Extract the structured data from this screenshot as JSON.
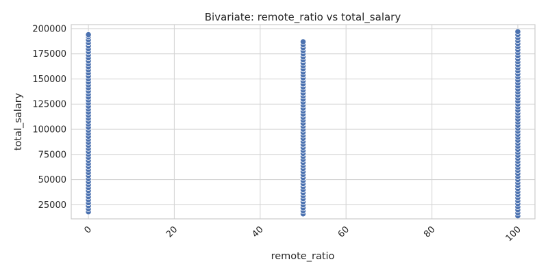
{
  "chart_data": {
    "type": "scatter",
    "title": "Bivariate: remote_ratio vs total_salary",
    "xlabel": "remote_ratio",
    "ylabel": "total_salary",
    "xlim": [
      -4,
      104
    ],
    "ylim": [
      11000,
      204000
    ],
    "x_ticks": [
      0,
      20,
      40,
      60,
      80,
      100
    ],
    "x_tick_labels": [
      "0",
      "20",
      "40",
      "60",
      "80",
      "100"
    ],
    "y_ticks": [
      25000,
      50000,
      75000,
      100000,
      125000,
      150000,
      175000,
      200000
    ],
    "y_tick_labels": [
      "25000",
      "50000",
      "75000",
      "100000",
      "125000",
      "150000",
      "175000",
      "200000"
    ],
    "x_tick_rotation_deg": 45,
    "grid": true,
    "marker_color": "#4c72b0",
    "series": [
      {
        "points": [
          [
            0,
            18000
          ],
          [
            0,
            21000
          ],
          [
            0,
            24000
          ],
          [
            0,
            27000
          ],
          [
            0,
            30000
          ],
          [
            0,
            33000
          ],
          [
            0,
            36000
          ],
          [
            0,
            39000
          ],
          [
            0,
            42000
          ],
          [
            0,
            45000
          ],
          [
            0,
            48000
          ],
          [
            0,
            51000
          ],
          [
            0,
            54000
          ],
          [
            0,
            57000
          ],
          [
            0,
            60000
          ],
          [
            0,
            63000
          ],
          [
            0,
            66000
          ],
          [
            0,
            69000
          ],
          [
            0,
            72000
          ],
          [
            0,
            75000
          ],
          [
            0,
            78000
          ],
          [
            0,
            81000
          ],
          [
            0,
            84000
          ],
          [
            0,
            87000
          ],
          [
            0,
            90000
          ],
          [
            0,
            93000
          ],
          [
            0,
            96000
          ],
          [
            0,
            99000
          ],
          [
            0,
            102000
          ],
          [
            0,
            105000
          ],
          [
            0,
            108000
          ],
          [
            0,
            111000
          ],
          [
            0,
            114000
          ],
          [
            0,
            117000
          ],
          [
            0,
            120000
          ],
          [
            0,
            123000
          ],
          [
            0,
            126000
          ],
          [
            0,
            129000
          ],
          [
            0,
            132000
          ],
          [
            0,
            135000
          ],
          [
            0,
            138000
          ],
          [
            0,
            141000
          ],
          [
            0,
            144000
          ],
          [
            0,
            147000
          ],
          [
            0,
            150000
          ],
          [
            0,
            153000
          ],
          [
            0,
            156000
          ],
          [
            0,
            159000
          ],
          [
            0,
            162000
          ],
          [
            0,
            165000
          ],
          [
            0,
            168000
          ],
          [
            0,
            171000
          ],
          [
            0,
            174000
          ],
          [
            0,
            177000
          ],
          [
            0,
            180000
          ],
          [
            0,
            183000
          ],
          [
            0,
            186000
          ],
          [
            0,
            189000
          ],
          [
            0,
            192000
          ],
          [
            0,
            194000
          ],
          [
            50,
            16000
          ],
          [
            50,
            19000
          ],
          [
            50,
            22000
          ],
          [
            50,
            25000
          ],
          [
            50,
            28000
          ],
          [
            50,
            31000
          ],
          [
            50,
            34000
          ],
          [
            50,
            37000
          ],
          [
            50,
            40000
          ],
          [
            50,
            43000
          ],
          [
            50,
            46000
          ],
          [
            50,
            49000
          ],
          [
            50,
            52000
          ],
          [
            50,
            55000
          ],
          [
            50,
            58000
          ],
          [
            50,
            61000
          ],
          [
            50,
            64000
          ],
          [
            50,
            67000
          ],
          [
            50,
            70000
          ],
          [
            50,
            73000
          ],
          [
            50,
            76000
          ],
          [
            50,
            79000
          ],
          [
            50,
            82000
          ],
          [
            50,
            85000
          ],
          [
            50,
            88000
          ],
          [
            50,
            91000
          ],
          [
            50,
            94000
          ],
          [
            50,
            97000
          ],
          [
            50,
            100000
          ],
          [
            50,
            103000
          ],
          [
            50,
            106000
          ],
          [
            50,
            109000
          ],
          [
            50,
            112000
          ],
          [
            50,
            115000
          ],
          [
            50,
            118000
          ],
          [
            50,
            121000
          ],
          [
            50,
            124000
          ],
          [
            50,
            127000
          ],
          [
            50,
            130000
          ],
          [
            50,
            133000
          ],
          [
            50,
            136000
          ],
          [
            50,
            139000
          ],
          [
            50,
            142000
          ],
          [
            50,
            145000
          ],
          [
            50,
            148000
          ],
          [
            50,
            151000
          ],
          [
            50,
            154000
          ],
          [
            50,
            157000
          ],
          [
            50,
            160000
          ],
          [
            50,
            163000
          ],
          [
            50,
            166000
          ],
          [
            50,
            169000
          ],
          [
            50,
            172000
          ],
          [
            50,
            175000
          ],
          [
            50,
            178000
          ],
          [
            50,
            181000
          ],
          [
            50,
            184000
          ],
          [
            50,
            187000
          ],
          [
            100,
            14000
          ],
          [
            100,
            17000
          ],
          [
            100,
            20000
          ],
          [
            100,
            23000
          ],
          [
            100,
            26000
          ],
          [
            100,
            29000
          ],
          [
            100,
            32000
          ],
          [
            100,
            35000
          ],
          [
            100,
            38000
          ],
          [
            100,
            41000
          ],
          [
            100,
            44000
          ],
          [
            100,
            47000
          ],
          [
            100,
            50000
          ],
          [
            100,
            53000
          ],
          [
            100,
            56000
          ],
          [
            100,
            59000
          ],
          [
            100,
            62000
          ],
          [
            100,
            65000
          ],
          [
            100,
            68000
          ],
          [
            100,
            71000
          ],
          [
            100,
            74000
          ],
          [
            100,
            77000
          ],
          [
            100,
            80000
          ],
          [
            100,
            83000
          ],
          [
            100,
            86000
          ],
          [
            100,
            89000
          ],
          [
            100,
            92000
          ],
          [
            100,
            95000
          ],
          [
            100,
            98000
          ],
          [
            100,
            101000
          ],
          [
            100,
            104000
          ],
          [
            100,
            107000
          ],
          [
            100,
            110000
          ],
          [
            100,
            113000
          ],
          [
            100,
            116000
          ],
          [
            100,
            119000
          ],
          [
            100,
            122000
          ],
          [
            100,
            125000
          ],
          [
            100,
            128000
          ],
          [
            100,
            131000
          ],
          [
            100,
            134000
          ],
          [
            100,
            137000
          ],
          [
            100,
            140000
          ],
          [
            100,
            143000
          ],
          [
            100,
            146000
          ],
          [
            100,
            149000
          ],
          [
            100,
            152000
          ],
          [
            100,
            155000
          ],
          [
            100,
            158000
          ],
          [
            100,
            161000
          ],
          [
            100,
            164000
          ],
          [
            100,
            167000
          ],
          [
            100,
            170000
          ],
          [
            100,
            173000
          ],
          [
            100,
            176000
          ],
          [
            100,
            179000
          ],
          [
            100,
            182000
          ],
          [
            100,
            185000
          ],
          [
            100,
            188000
          ],
          [
            100,
            191000
          ],
          [
            100,
            194000
          ],
          [
            100,
            197000
          ]
        ]
      }
    ]
  }
}
